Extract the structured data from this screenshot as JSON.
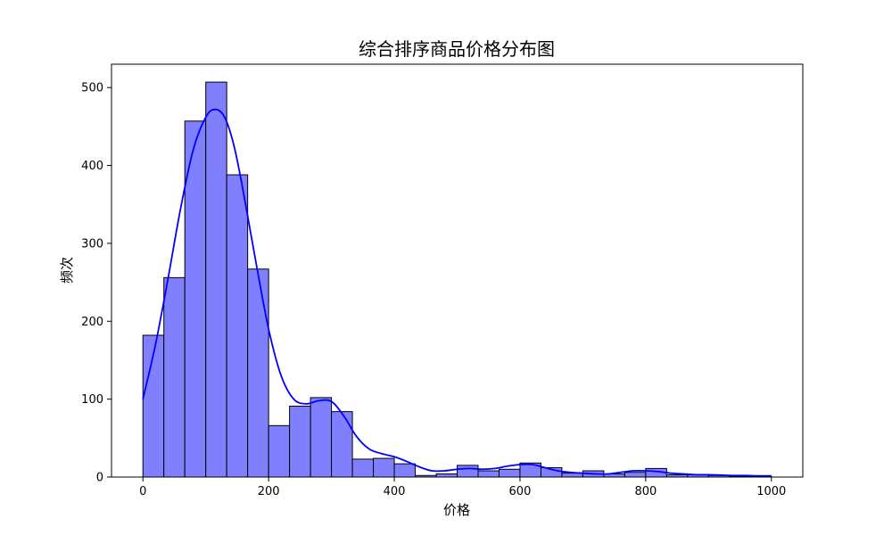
{
  "chart_data": {
    "type": "bar",
    "title": "综合排序商品价格分布图",
    "xlabel": "价格",
    "ylabel": "频次",
    "xlim": [
      -50,
      1050
    ],
    "ylim": [
      0,
      530
    ],
    "xticks": [
      0,
      200,
      400,
      600,
      800,
      1000
    ],
    "yticks": [
      0,
      100,
      200,
      300,
      400,
      500
    ],
    "bin_width": 33.33,
    "bins": [
      0,
      33.33,
      66.67,
      100,
      133.33,
      166.67,
      200,
      233.33,
      266.67,
      300,
      333.33,
      366.67,
      400,
      433.33,
      466.67,
      500,
      533.33,
      566.67,
      600,
      633.33,
      666.67,
      700,
      733.33,
      766.67,
      800,
      833.33,
      866.67,
      900,
      933.33,
      966.67
    ],
    "values": [
      182,
      256,
      457,
      507,
      388,
      267,
      66,
      91,
      102,
      84,
      23,
      24,
      17,
      2,
      4,
      15,
      8,
      10,
      18,
      12,
      5,
      8,
      4,
      6,
      11,
      3,
      3,
      2,
      1,
      1
    ],
    "kde": {
      "x": [
        0,
        20,
        40,
        60,
        80,
        100,
        115,
        130,
        145,
        160,
        180,
        200,
        220,
        240,
        260,
        280,
        300,
        320,
        340,
        360,
        380,
        400,
        420,
        440,
        460,
        480,
        500,
        520,
        540,
        560,
        580,
        600,
        620,
        640,
        660,
        680,
        700,
        720,
        740,
        760,
        780,
        800,
        820,
        840,
        860,
        880,
        900,
        920,
        940,
        960,
        980,
        1000
      ],
      "y": [
        100,
        170,
        255,
        345,
        420,
        462,
        472,
        462,
        425,
        365,
        275,
        190,
        130,
        100,
        94,
        98,
        97,
        78,
        52,
        36,
        30,
        26,
        20,
        13,
        8,
        8,
        10,
        11,
        10,
        11,
        14,
        16,
        16,
        12,
        8,
        6,
        5,
        4,
        4,
        6,
        8,
        8,
        7,
        5,
        4,
        3,
        3,
        2.5,
        2,
        2,
        1.5,
        1.5
      ]
    },
    "bar_fill": "#8080ff",
    "bar_edge": "#000000",
    "line_color": "#0000ff",
    "grid": false,
    "legend": "none"
  }
}
